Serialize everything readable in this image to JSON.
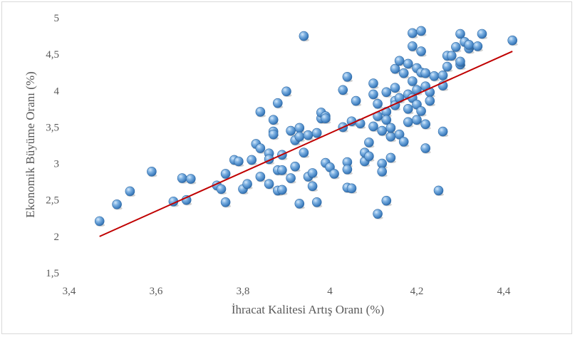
{
  "chart_data": {
    "type": "scatter",
    "title": "",
    "xlabel": "İhracat Kalitesi Artış Oranı (%)",
    "ylabel": "Ekonomik Büyüme Oranı (%)",
    "xlim": [
      3.4,
      4.4
    ],
    "ylim": [
      1.5,
      5
    ],
    "x_ticks": [
      "3,4",
      "3,6",
      "3,8",
      "4",
      "4,2",
      "4,4"
    ],
    "y_ticks": [
      "1,5",
      "2",
      "2,5",
      "3",
      "3,5",
      "4",
      "4,5",
      "5"
    ],
    "grid": false,
    "marker_color": "#5b9bd5",
    "trendline": {
      "x": [
        3.47,
        4.42
      ],
      "y": [
        2.0,
        4.54
      ],
      "color": "#c00000"
    },
    "points": [
      [
        3.47,
        2.21
      ],
      [
        3.51,
        2.44
      ],
      [
        3.54,
        2.62
      ],
      [
        3.59,
        2.89
      ],
      [
        3.64,
        2.48
      ],
      [
        3.66,
        2.8
      ],
      [
        3.67,
        2.5
      ],
      [
        3.68,
        2.79
      ],
      [
        3.74,
        2.7
      ],
      [
        3.75,
        2.65
      ],
      [
        3.76,
        2.86
      ],
      [
        3.76,
        2.47
      ],
      [
        3.78,
        3.05
      ],
      [
        3.79,
        3.03
      ],
      [
        3.8,
        2.65
      ],
      [
        3.81,
        2.72
      ],
      [
        3.82,
        3.05
      ],
      [
        3.83,
        3.27
      ],
      [
        3.84,
        3.21
      ],
      [
        3.84,
        2.82
      ],
      [
        3.84,
        3.71
      ],
      [
        3.86,
        3.14
      ],
      [
        3.86,
        2.72
      ],
      [
        3.86,
        3.06
      ],
      [
        3.87,
        3.6
      ],
      [
        3.87,
        3.44
      ],
      [
        3.87,
        3.4
      ],
      [
        3.88,
        2.91
      ],
      [
        3.88,
        3.83
      ],
      [
        3.88,
        2.63
      ],
      [
        3.89,
        2.64
      ],
      [
        3.89,
        2.91
      ],
      [
        3.89,
        3.12
      ],
      [
        3.9,
        3.99
      ],
      [
        3.91,
        2.8
      ],
      [
        3.91,
        3.45
      ],
      [
        3.92,
        2.96
      ],
      [
        3.92,
        3.32
      ],
      [
        3.93,
        3.49
      ],
      [
        3.93,
        3.37
      ],
      [
        3.93,
        2.45
      ],
      [
        3.94,
        3.15
      ],
      [
        3.94,
        4.75
      ],
      [
        3.95,
        3.39
      ],
      [
        3.95,
        2.82
      ],
      [
        3.96,
        2.87
      ],
      [
        3.96,
        2.69
      ],
      [
        3.97,
        3.42
      ],
      [
        3.97,
        2.47
      ],
      [
        3.98,
        3.62
      ],
      [
        3.98,
        3.7
      ],
      [
        3.99,
        3.01
      ],
      [
        3.99,
        3.65
      ],
      [
        3.99,
        3.62
      ],
      [
        4.0,
        2.95
      ],
      [
        4.01,
        2.86
      ],
      [
        4.03,
        3.5
      ],
      [
        4.03,
        4.01
      ],
      [
        4.04,
        3.02
      ],
      [
        4.04,
        2.92
      ],
      [
        4.04,
        2.67
      ],
      [
        4.04,
        4.19
      ],
      [
        4.05,
        2.66
      ],
      [
        4.05,
        3.58
      ],
      [
        4.06,
        3.86
      ],
      [
        4.07,
        3.55
      ],
      [
        4.08,
        3.03
      ],
      [
        4.08,
        3.15
      ],
      [
        4.09,
        3.29
      ],
      [
        4.09,
        3.1
      ],
      [
        4.1,
        3.51
      ],
      [
        4.1,
        3.95
      ],
      [
        4.1,
        4.1
      ],
      [
        4.11,
        3.65
      ],
      [
        4.11,
        3.82
      ],
      [
        4.11,
        2.31
      ],
      [
        4.12,
        3.0
      ],
      [
        4.12,
        3.45
      ],
      [
        4.12,
        2.89
      ],
      [
        4.13,
        3.71
      ],
      [
        4.13,
        3.98
      ],
      [
        4.13,
        3.6
      ],
      [
        4.13,
        2.49
      ],
      [
        4.14,
        3.37
      ],
      [
        4.14,
        3.49
      ],
      [
        4.14,
        3.08
      ],
      [
        4.15,
        3.86
      ],
      [
        4.15,
        4.04
      ],
      [
        4.15,
        3.8
      ],
      [
        4.15,
        4.3
      ],
      [
        4.16,
        3.9
      ],
      [
        4.16,
        3.4
      ],
      [
        4.16,
        4.41
      ],
      [
        4.17,
        3.3
      ],
      [
        4.17,
        4.24
      ],
      [
        4.18,
        3.57
      ],
      [
        4.18,
        3.75
      ],
      [
        4.18,
        3.95
      ],
      [
        4.18,
        4.37
      ],
      [
        4.19,
        4.13
      ],
      [
        4.19,
        3.9
      ],
      [
        4.19,
        4.79
      ],
      [
        4.19,
        4.61
      ],
      [
        4.2,
        4.31
      ],
      [
        4.2,
        4.01
      ],
      [
        4.2,
        3.81
      ],
      [
        4.2,
        3.6
      ],
      [
        4.21,
        4.82
      ],
      [
        4.21,
        4.54
      ],
      [
        4.21,
        4.25
      ],
      [
        4.21,
        3.72
      ],
      [
        4.22,
        3.54
      ],
      [
        4.22,
        4.06
      ],
      [
        4.22,
        4.24
      ],
      [
        4.22,
        3.21
      ],
      [
        4.23,
        3.98
      ],
      [
        4.23,
        3.86
      ],
      [
        4.24,
        4.2
      ],
      [
        4.25,
        2.63
      ],
      [
        4.26,
        3.44
      ],
      [
        4.26,
        4.07
      ],
      [
        4.26,
        4.21
      ],
      [
        4.27,
        4.48
      ],
      [
        4.27,
        4.33
      ],
      [
        4.28,
        4.48
      ],
      [
        4.29,
        4.6
      ],
      [
        4.3,
        4.36
      ],
      [
        4.3,
        4.4
      ],
      [
        4.3,
        4.78
      ],
      [
        4.31,
        4.67
      ],
      [
        4.32,
        4.58
      ],
      [
        4.32,
        4.63
      ],
      [
        4.34,
        4.61
      ],
      [
        4.35,
        4.78
      ],
      [
        4.42,
        4.69
      ]
    ]
  }
}
